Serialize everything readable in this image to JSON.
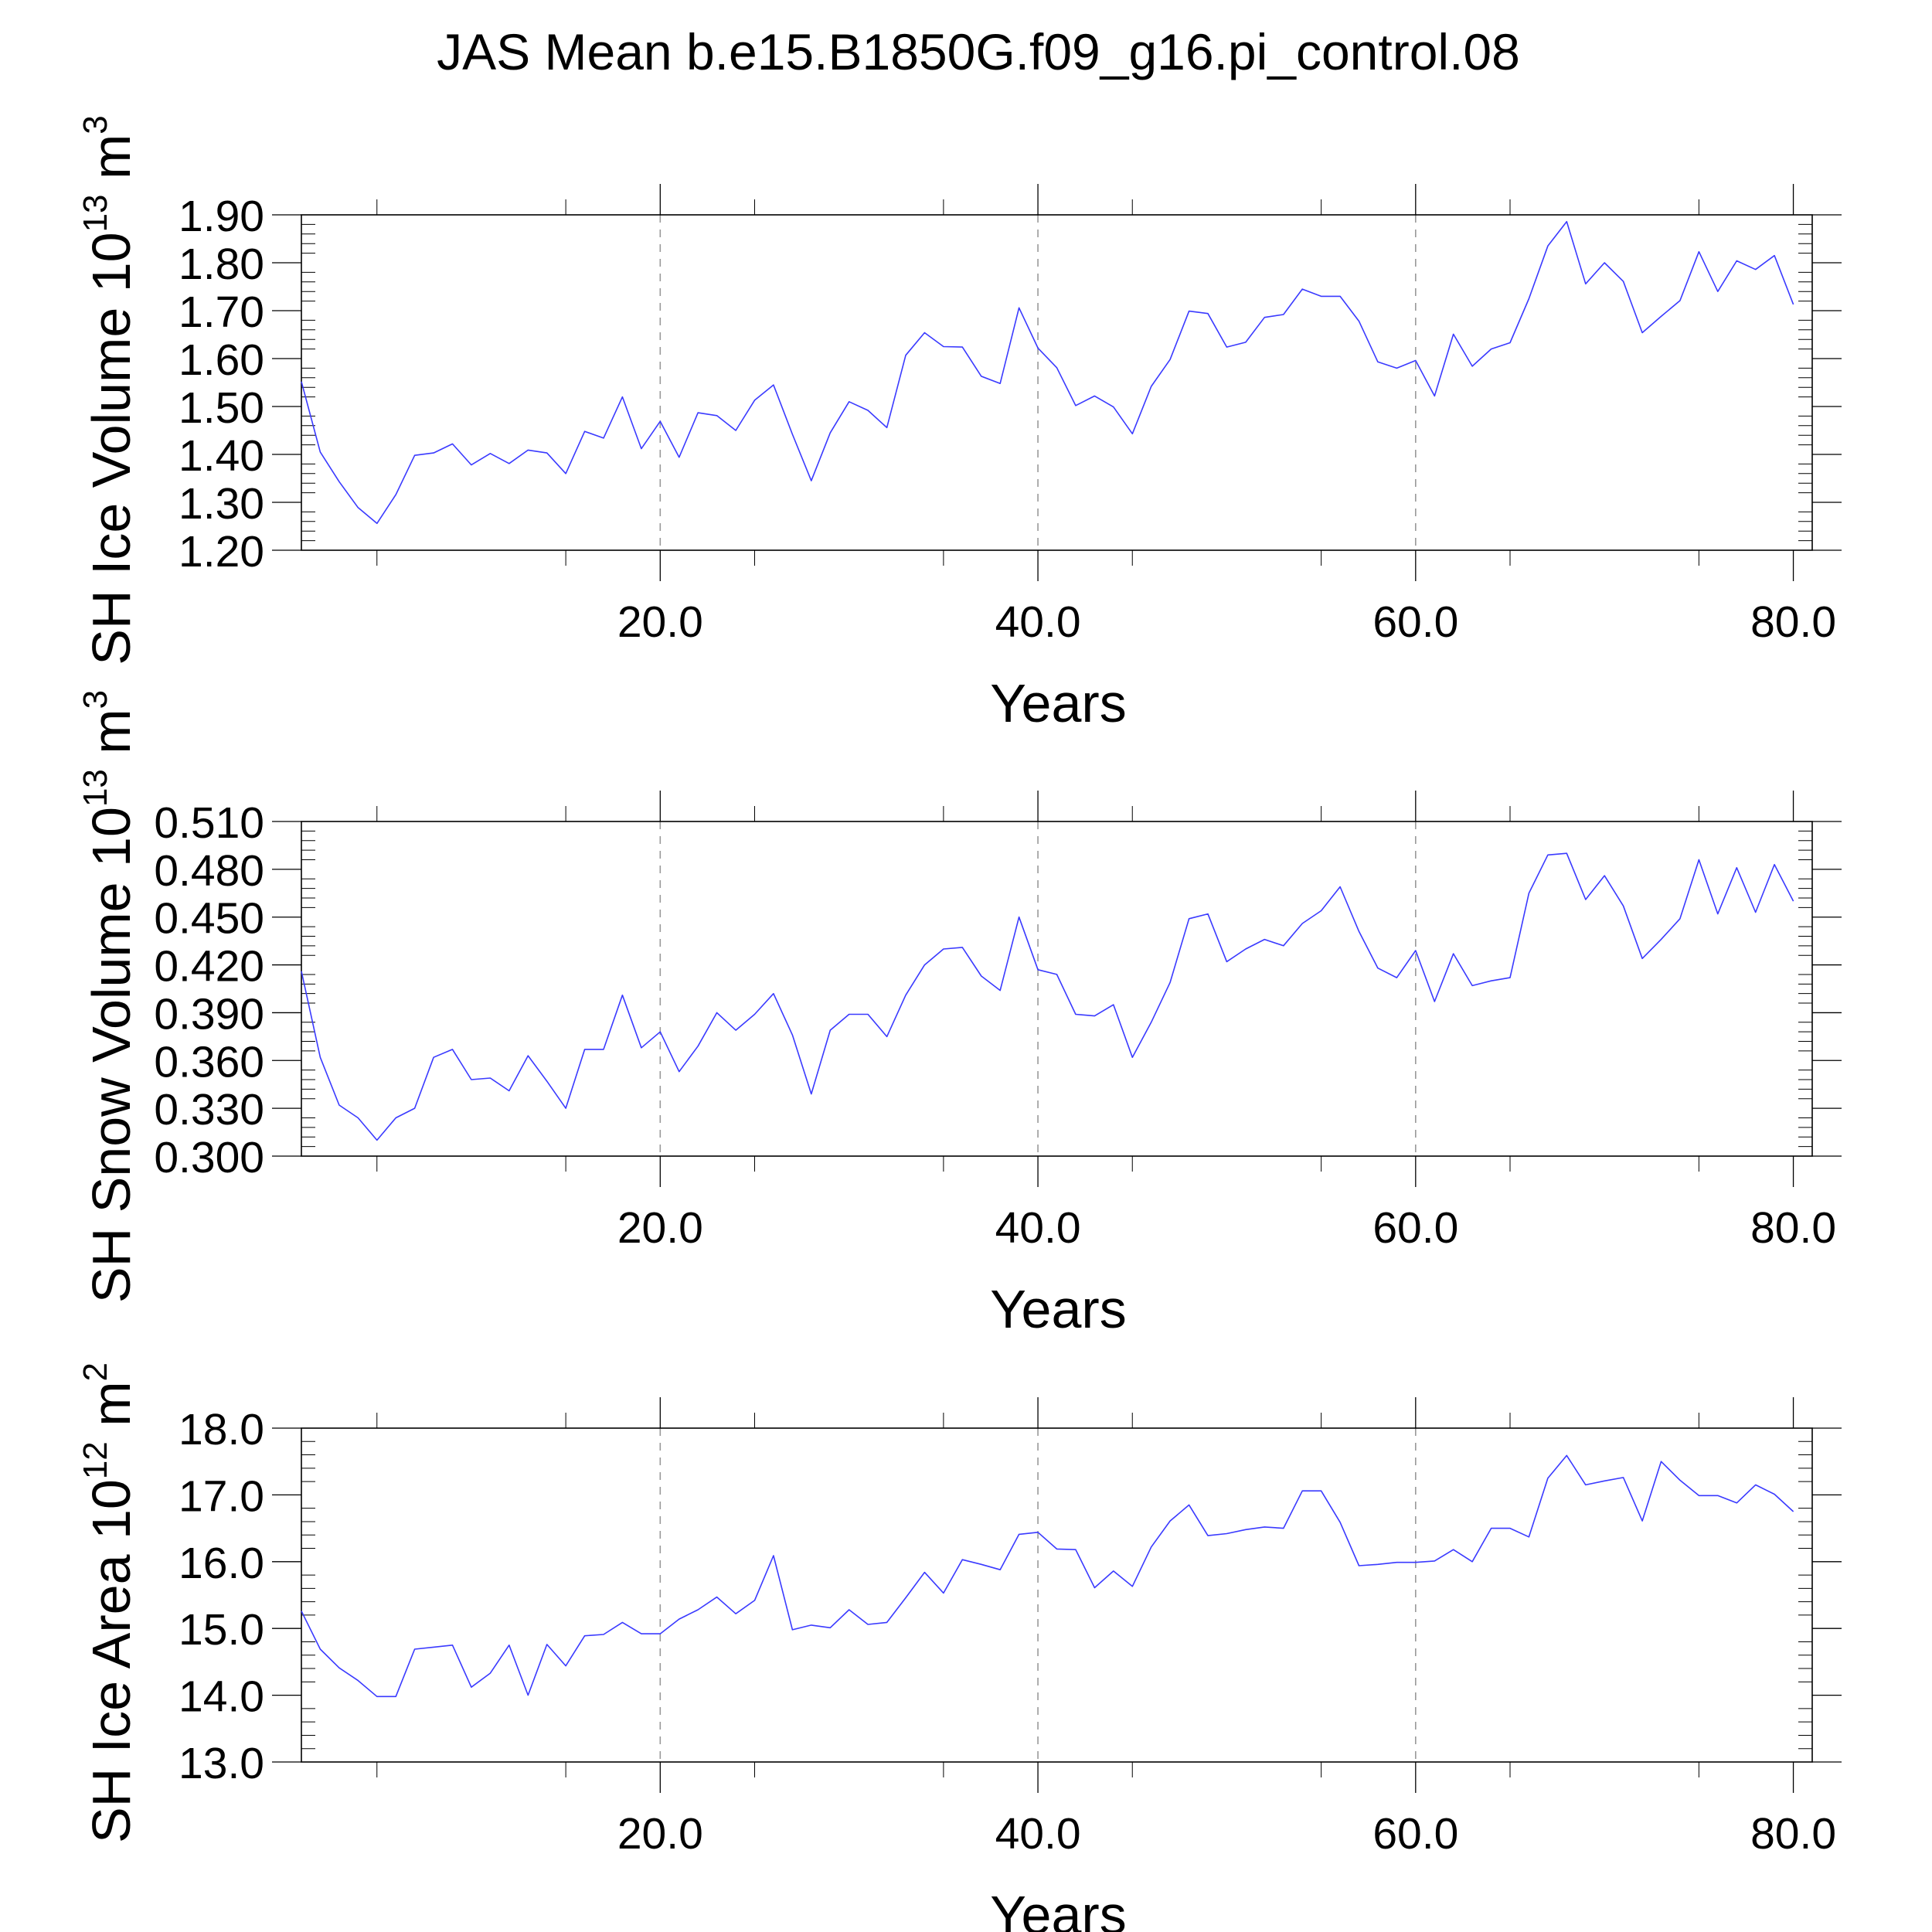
{
  "title": "JAS Mean b.e15.B1850G.f09_g16.pi_control.08",
  "colors": {
    "series": "#3a3aff",
    "grid": "#999999",
    "axis": "#000000"
  },
  "chart_data": [
    {
      "type": "line",
      "ylabel_main": "SH Ice Volume 10",
      "ylabel_exp": "13",
      "ylabel_unit": " m",
      "ylabel_unit_exp": "3",
      "xlabel": "Years",
      "xlim": [
        1,
        81
      ],
      "ylim": [
        1.2,
        1.9
      ],
      "yticks": [
        "1.20",
        "1.30",
        "1.40",
        "1.50",
        "1.60",
        "1.70",
        "1.80",
        "1.90"
      ],
      "xticks": [
        "20.0",
        "40.0",
        "60.0",
        "80.0"
      ],
      "grid": "dashed vertical at 20, 40, 60",
      "x_start": 1,
      "values": [
        1.552,
        1.405,
        1.343,
        1.289,
        1.256,
        1.316,
        1.398,
        1.403,
        1.422,
        1.378,
        1.402,
        1.381,
        1.409,
        1.403,
        1.36,
        1.448,
        1.434,
        1.52,
        1.412,
        1.469,
        1.394,
        1.487,
        1.481,
        1.45,
        1.513,
        1.545,
        1.442,
        1.345,
        1.445,
        1.51,
        1.492,
        1.456,
        1.607,
        1.654,
        1.625,
        1.624,
        1.563,
        1.548,
        1.706,
        1.622,
        1.581,
        1.502,
        1.522,
        1.499,
        1.443,
        1.542,
        1.598,
        1.699,
        1.694,
        1.624,
        1.634,
        1.686,
        1.692,
        1.745,
        1.73,
        1.73,
        1.678,
        1.593,
        1.58,
        1.596,
        1.522,
        1.651,
        1.584,
        1.62,
        1.633,
        1.725,
        1.835,
        1.886,
        1.756,
        1.8,
        1.761,
        1.654,
        1.688,
        1.721,
        1.823,
        1.74,
        1.804,
        1.786,
        1.815,
        1.713
      ]
    },
    {
      "type": "line",
      "ylabel_main": "SH Snow Volume 10",
      "ylabel_exp": "13",
      "ylabel_unit": " m",
      "ylabel_unit_exp": "3",
      "xlabel": "Years",
      "xlim": [
        1,
        81
      ],
      "ylim": [
        0.3,
        0.51
      ],
      "yticks": [
        "0.300",
        "0.330",
        "0.360",
        "0.390",
        "0.420",
        "0.450",
        "0.480",
        "0.510"
      ],
      "xticks": [
        "20.0",
        "40.0",
        "60.0",
        "80.0"
      ],
      "grid": "dashed vertical at 20, 40, 60",
      "x_start": 1,
      "values": [
        0.416,
        0.362,
        0.332,
        0.324,
        0.31,
        0.324,
        0.33,
        0.362,
        0.367,
        0.348,
        0.349,
        0.341,
        0.363,
        0.347,
        0.33,
        0.367,
        0.367,
        0.401,
        0.368,
        0.378,
        0.353,
        0.369,
        0.39,
        0.379,
        0.389,
        0.402,
        0.376,
        0.339,
        0.379,
        0.389,
        0.389,
        0.375,
        0.401,
        0.42,
        0.43,
        0.431,
        0.413,
        0.404,
        0.45,
        0.417,
        0.414,
        0.389,
        0.388,
        0.395,
        0.362,
        0.384,
        0.409,
        0.449,
        0.452,
        0.422,
        0.43,
        0.436,
        0.432,
        0.446,
        0.454,
        0.469,
        0.441,
        0.418,
        0.412,
        0.429,
        0.397,
        0.427,
        0.407,
        0.41,
        0.412,
        0.465,
        0.489,
        0.49,
        0.461,
        0.476,
        0.457,
        0.424,
        0.436,
        0.449,
        0.486,
        0.452,
        0.481,
        0.453,
        0.483,
        0.46
      ]
    },
    {
      "type": "line",
      "ylabel_main": "SH Ice Area 10",
      "ylabel_exp": "12",
      "ylabel_unit": " m",
      "ylabel_unit_exp": "2",
      "xlabel": "Years",
      "xlim": [
        1,
        81
      ],
      "ylim": [
        13.0,
        18.0
      ],
      "yticks": [
        "13.0",
        "14.0",
        "15.0",
        "16.0",
        "17.0",
        "18.0"
      ],
      "xticks": [
        "20.0",
        "40.0",
        "60.0",
        "80.0"
      ],
      "grid": "dashed vertical at 20, 40, 60",
      "x_start": 1,
      "values": [
        15.26,
        14.69,
        14.41,
        14.22,
        13.98,
        13.98,
        14.69,
        14.72,
        14.75,
        14.12,
        14.33,
        14.75,
        14.0,
        14.76,
        14.44,
        14.89,
        14.91,
        15.09,
        14.92,
        14.92,
        15.14,
        15.28,
        15.47,
        15.22,
        15.42,
        16.09,
        14.98,
        15.05,
        15.01,
        15.28,
        15.06,
        15.09,
        15.46,
        15.84,
        15.53,
        16.03,
        15.96,
        15.88,
        16.41,
        16.44,
        16.19,
        16.18,
        15.61,
        15.86,
        15.63,
        16.22,
        16.61,
        16.85,
        16.39,
        16.42,
        16.48,
        16.52,
        16.5,
        17.06,
        17.06,
        16.59,
        15.94,
        15.96,
        15.99,
        15.99,
        16.01,
        16.18,
        16.0,
        16.5,
        16.5,
        16.37,
        17.25,
        17.59,
        17.15,
        17.21,
        17.26,
        16.61,
        17.5,
        17.22,
        16.99,
        16.99,
        16.88,
        17.15,
        17.01,
        16.75
      ]
    }
  ]
}
